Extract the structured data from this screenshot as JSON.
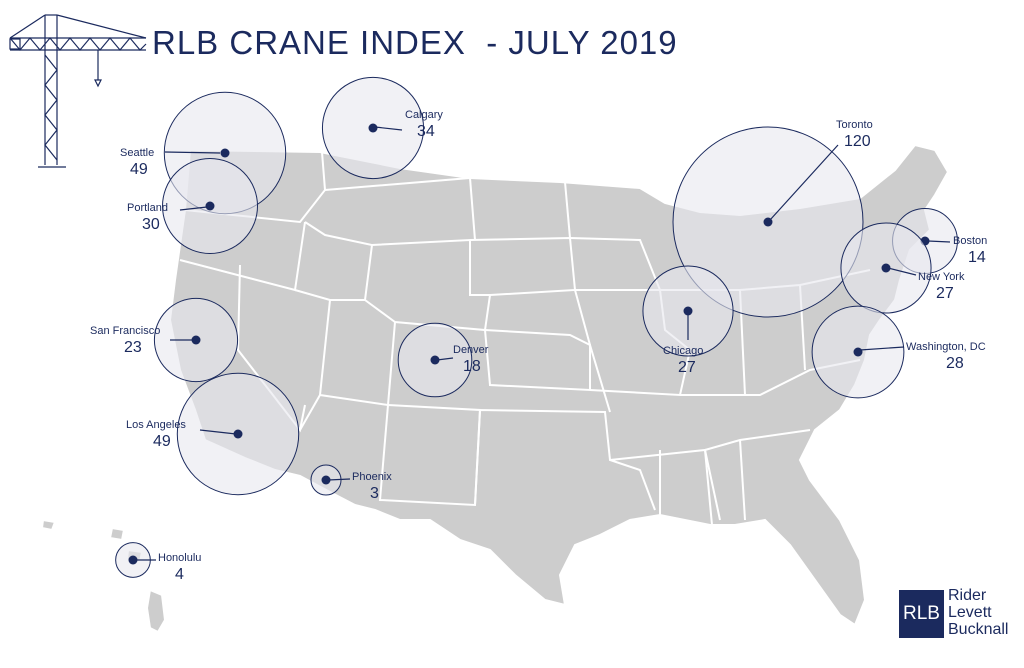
{
  "title": "RLB CRANE INDEX  - JULY 2019",
  "colors": {
    "navy": "#1b2a5e",
    "land": "#cdcdcd",
    "bubble": "#e7e8ef"
  },
  "logo": {
    "mark": "RLB",
    "line1": "Rider",
    "line2": "Levett",
    "line3": "Bucknall"
  },
  "cities": [
    {
      "id": "seattle",
      "name": "Seattle",
      "count": "49",
      "value": 49
    },
    {
      "id": "calgary",
      "name": "Calgary",
      "count": "34",
      "value": 34
    },
    {
      "id": "portland",
      "name": "Portland",
      "count": "30",
      "value": 30
    },
    {
      "id": "toronto",
      "name": "Toronto",
      "count": "120",
      "value": 120
    },
    {
      "id": "boston",
      "name": "Boston",
      "count": "14",
      "value": 14
    },
    {
      "id": "new-york",
      "name": "New York",
      "count": "27",
      "value": 27
    },
    {
      "id": "san-francisco",
      "name": "San Francisco",
      "count": "23",
      "value": 23
    },
    {
      "id": "chicago",
      "name": "Chicago",
      "count": "27",
      "value": 27
    },
    {
      "id": "washington-dc",
      "name": "Washington, DC",
      "count": "28",
      "value": 28
    },
    {
      "id": "denver",
      "name": "Denver",
      "count": "18",
      "value": 18
    },
    {
      "id": "los-angeles",
      "name": "Los Angeles",
      "count": "49",
      "value": 49
    },
    {
      "id": "phoenix",
      "name": "Phoenix",
      "count": "3",
      "value": 3
    },
    {
      "id": "honolulu",
      "name": "Honolulu",
      "count": "4",
      "value": 4
    }
  ]
}
